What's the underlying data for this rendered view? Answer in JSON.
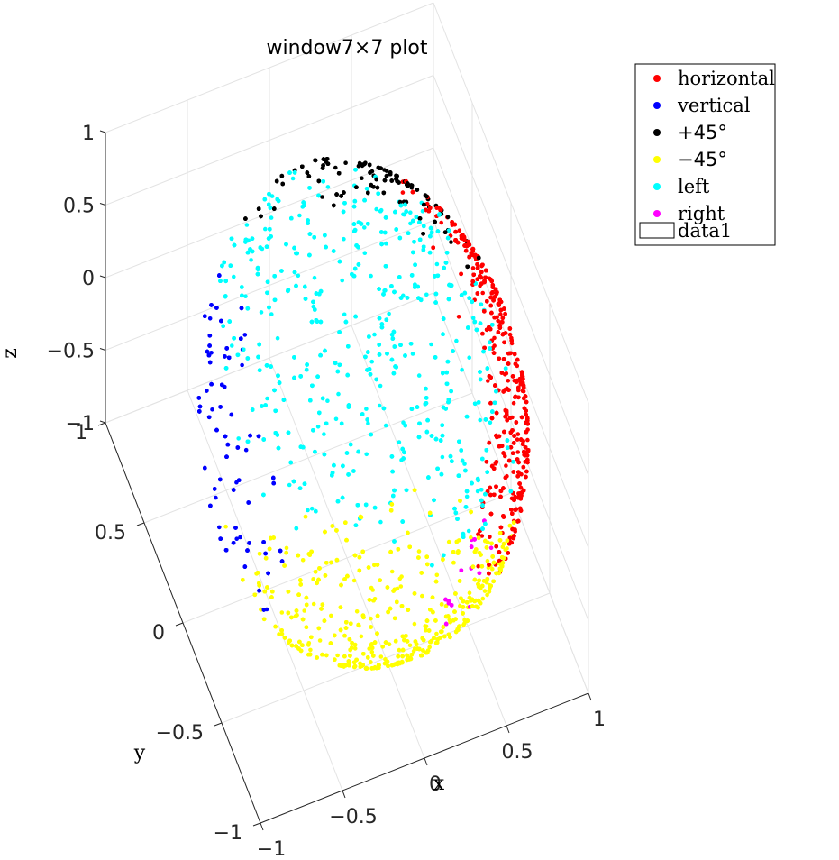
{
  "chart_data": {
    "type": "scatter",
    "projection": "3d",
    "surface": "unit-sphere",
    "title": "window7×7 plot",
    "xlabel": "x",
    "ylabel": "y",
    "zlabel": "z",
    "xlim": [
      -1,
      1
    ],
    "ylim": [
      -1,
      1
    ],
    "zlim": [
      -1,
      1
    ],
    "x_ticks": [
      {
        "value": -1,
        "label": "−1"
      },
      {
        "value": -0.5,
        "label": "−0.5"
      },
      {
        "value": 0,
        "label": "0"
      },
      {
        "value": 0.5,
        "label": "0.5"
      },
      {
        "value": 1,
        "label": "1"
      }
    ],
    "y_ticks": [
      {
        "value": -1,
        "label": "−1"
      },
      {
        "value": -0.5,
        "label": "−0.5"
      },
      {
        "value": 0,
        "label": "0"
      },
      {
        "value": 0.5,
        "label": "0.5"
      },
      {
        "value": 1,
        "label": "1"
      }
    ],
    "z_ticks": [
      {
        "value": -1,
        "label": "−1"
      },
      {
        "value": -0.5,
        "label": "−0.5"
      },
      {
        "value": 0,
        "label": "0"
      },
      {
        "value": 0.5,
        "label": "0.5"
      },
      {
        "value": 1,
        "label": "1"
      }
    ],
    "grid": true,
    "legend_position": "top-right",
    "series": [
      {
        "name": "horizontal",
        "color": "#ff0000",
        "cluster_center": [
          1,
          0.15,
          0.05
        ]
      },
      {
        "name": "vertical",
        "color": "#0000ff",
        "cluster_center": [
          -1,
          0.2,
          -0.1
        ]
      },
      {
        "name": "+45°",
        "color": "#000000",
        "cluster_center": [
          0.35,
          0.85,
          0.35
        ]
      },
      {
        "name": "−45°",
        "color": "#ffff00",
        "cluster_center": [
          -0.3,
          -0.85,
          -0.4
        ]
      },
      {
        "name": "left",
        "color": "#00ffff",
        "cluster_center": [
          0.05,
          -0.2,
          0.98
        ]
      },
      {
        "name": "right",
        "color": "#ff00ff",
        "cluster_center": [
          0.05,
          0.2,
          -0.98
        ]
      }
    ],
    "surface_series": {
      "name": "data1",
      "face_color": "#ffffff",
      "edge_color": "#000000"
    }
  }
}
